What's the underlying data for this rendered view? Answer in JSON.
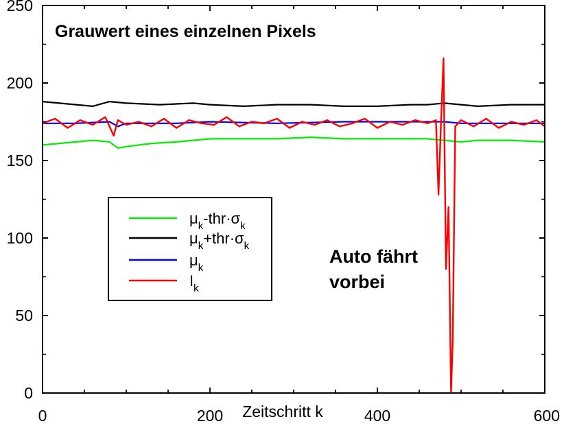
{
  "chart_data": {
    "type": "line",
    "title": "Grauwert eines einzelnen Pixels",
    "xlabel": "Zeitschritt k",
    "ylabel": "",
    "xlim": [
      0,
      600
    ],
    "ylim": [
      0,
      250
    ],
    "xticks": [
      0,
      200,
      400,
      600
    ],
    "yticks": [
      0,
      50,
      100,
      150,
      200,
      250
    ],
    "grid": false,
    "legend_position": "center-left",
    "annotation": [
      "Auto fährt",
      "vorbei"
    ],
    "series": [
      {
        "name": "μk-thr·σk",
        "legend": {
          "main1": "μ",
          "sub1": "k",
          "main2": "-thr·σ",
          "sub2": "k"
        },
        "color": "#00ee00",
        "x": [
          0,
          20,
          40,
          60,
          80,
          90,
          100,
          130,
          160,
          200,
          240,
          280,
          320,
          360,
          400,
          440,
          460,
          480,
          500,
          520,
          560,
          600
        ],
        "y": [
          160,
          161,
          162,
          163,
          162,
          158,
          159,
          161,
          162,
          164,
          164,
          164,
          165,
          164,
          164,
          164,
          164,
          163,
          162,
          163,
          163,
          162
        ]
      },
      {
        "name": "μk+thr·σk",
        "legend": {
          "main1": "μ",
          "sub1": "k",
          "main2": "+thr·σ",
          "sub2": "k"
        },
        "color": "#000000",
        "x": [
          0,
          20,
          40,
          60,
          80,
          100,
          140,
          180,
          200,
          240,
          280,
          320,
          360,
          400,
          440,
          460,
          480,
          500,
          520,
          560,
          600
        ],
        "y": [
          188,
          187,
          186,
          185,
          188,
          187,
          186,
          187,
          186,
          185,
          186,
          186,
          185,
          185,
          186,
          186,
          187,
          186,
          185,
          186,
          186
        ]
      },
      {
        "name": "μk",
        "legend": {
          "main1": "μ",
          "sub1": "k",
          "main2": "",
          "sub2": ""
        },
        "color": "#0000ff",
        "x": [
          0,
          40,
          80,
          90,
          100,
          160,
          200,
          280,
          360,
          400,
          460,
          480,
          500,
          540,
          600
        ],
        "y": [
          174,
          174,
          175,
          172,
          174,
          174,
          175,
          174,
          175,
          175,
          175,
          175,
          174,
          174,
          174
        ]
      },
      {
        "name": "Ik",
        "legend": {
          "main1": "I",
          "sub1": "k",
          "main2": "",
          "sub2": ""
        },
        "color": "#ff0000",
        "x": [
          0,
          15,
          30,
          45,
          60,
          75,
          85,
          90,
          100,
          115,
          130,
          145,
          160,
          175,
          190,
          205,
          220,
          235,
          250,
          265,
          280,
          295,
          310,
          325,
          340,
          355,
          370,
          385,
          400,
          415,
          430,
          445,
          460,
          470,
          473,
          476,
          479,
          482,
          485,
          488,
          490,
          493,
          500,
          515,
          530,
          545,
          560,
          575,
          590,
          600
        ],
        "y": [
          174,
          177,
          171,
          176,
          173,
          178,
          166,
          176,
          173,
          175,
          172,
          177,
          171,
          176,
          174,
          173,
          178,
          172,
          175,
          174,
          177,
          171,
          175,
          173,
          176,
          172,
          174,
          177,
          171,
          175,
          173,
          176,
          174,
          176,
          128,
          174,
          216,
          80,
          120,
          0,
          33,
          172,
          176,
          172,
          177,
          171,
          175,
          173,
          176,
          172
        ]
      }
    ]
  }
}
